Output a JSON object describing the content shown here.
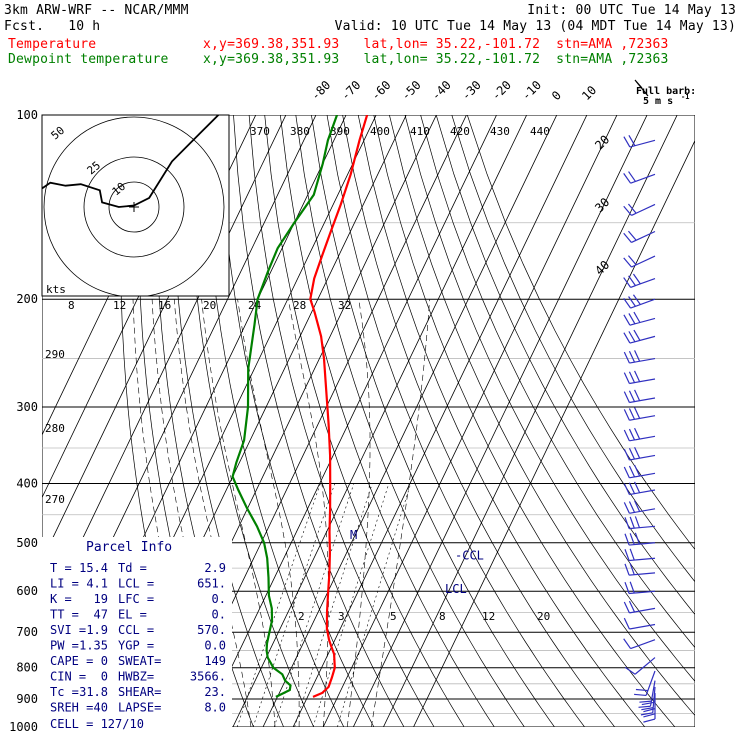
{
  "header": {
    "model": "3km ARW-WRF -- NCAR/MMM",
    "init": "Init: 00 UTC Tue 14 May 13",
    "fcst": "Fcst.   10 h",
    "valid": "Valid: 10 UTC Tue 14 May 13 (04 MDT Tue 14 May 13)",
    "temp_label": "Temperature",
    "temp_info": "x,y=369.38,351.93   lat,lon= 35.22,-101.72  stn=AMA ,72363",
    "dew_label": "Dewpoint temperature",
    "dew_info": "x,y=369.38,351.93   lat,lon= 35.22,-101.72  stn=AMA ,72363",
    "barb_legend_1": "Full barb:",
    "barb_legend_2": "5 m s",
    "barb_legend_3": "-1"
  },
  "colors": {
    "temperature": "#ff0000",
    "dewpoint": "#008000",
    "grid": "#000000",
    "parcel": "#000080",
    "hodograph": "#000000",
    "barbs": "#3030c0"
  },
  "chart_data": {
    "type": "line",
    "title": "3km ARW-WRF -- NCAR/MMM",
    "yscale": "log",
    "yinvert": true,
    "ylim": [
      1000,
      100
    ],
    "pressure_ticks": [
      100,
      200,
      300,
      400,
      500,
      600,
      700,
      800,
      900,
      1000
    ],
    "isotherm_labels": [
      -80,
      -70,
      -60,
      -50,
      -40,
      -30,
      -20,
      -10,
      0,
      10,
      20,
      30,
      40
    ],
    "theta_labels": [
      370,
      380,
      390,
      400,
      410,
      420,
      430,
      440
    ],
    "theta_side_labels": [
      290,
      280,
      270
    ],
    "mixing_ratio_labels_top": [
      8,
      12,
      16,
      20,
      24,
      28,
      32
    ],
    "mixing_ratio_labels_low": [
      2,
      3,
      5,
      8,
      12,
      20
    ],
    "series": [
      {
        "name": "Temperature",
        "points": [
          [
            893,
            11.8
          ],
          [
            880,
            14.2
          ],
          [
            860,
            15.4
          ],
          [
            830,
            15.0
          ],
          [
            800,
            14.4
          ],
          [
            760,
            12.0
          ],
          [
            740,
            10.0
          ],
          [
            720,
            8.0
          ],
          [
            690,
            5.5
          ],
          [
            650,
            3.0
          ],
          [
            600,
            0.0
          ],
          [
            560,
            -2.5
          ],
          [
            520,
            -5.5
          ],
          [
            480,
            -9.0
          ],
          [
            440,
            -12.5
          ],
          [
            400,
            -16.5
          ],
          [
            360,
            -21.0
          ],
          [
            320,
            -26.5
          ],
          [
            280,
            -33.0
          ],
          [
            250,
            -38.5
          ],
          [
            230,
            -43.0
          ],
          [
            210,
            -49.0
          ],
          [
            200,
            -52.5
          ],
          [
            185,
            -54.5
          ],
          [
            170,
            -55.5
          ],
          [
            155,
            -56.5
          ],
          [
            140,
            -57.5
          ],
          [
            125,
            -59.0
          ],
          [
            110,
            -61.5
          ],
          [
            100,
            -63.0
          ]
        ]
      },
      {
        "name": "Dewpoint temperature",
        "points": [
          [
            893,
            -0.5
          ],
          [
            870,
            3.0
          ],
          [
            855,
            2.5
          ],
          [
            840,
            0.0
          ],
          [
            820,
            -2.0
          ],
          [
            800,
            -6.0
          ],
          [
            770,
            -9.5
          ],
          [
            750,
            -11.0
          ],
          [
            730,
            -12.0
          ],
          [
            700,
            -13.0
          ],
          [
            670,
            -14.0
          ],
          [
            640,
            -16.0
          ],
          [
            610,
            -19.0
          ],
          [
            570,
            -22.0
          ],
          [
            530,
            -25.5
          ],
          [
            500,
            -29.0
          ],
          [
            470,
            -34.0
          ],
          [
            440,
            -40.0
          ],
          [
            410,
            -46.0
          ],
          [
            390,
            -50.0
          ],
          [
            370,
            -51.0
          ],
          [
            340,
            -52.0
          ],
          [
            300,
            -56.0
          ],
          [
            260,
            -62.0
          ],
          [
            220,
            -67.0
          ],
          [
            200,
            -70.0
          ],
          [
            180,
            -71.0
          ],
          [
            165,
            -71.5
          ],
          [
            150,
            -70.0
          ],
          [
            135,
            -68.0
          ],
          [
            120,
            -70.0
          ],
          [
            110,
            -72.0
          ],
          [
            100,
            -73.0
          ]
        ]
      }
    ],
    "markers": [
      {
        "label": "LCL",
        "pressure": 651
      },
      {
        "label": "-CCL",
        "pressure": 570
      },
      {
        "label": "M",
        "pressure": 500
      }
    ],
    "parcel_info": {
      "title": "Parcel Info",
      "rows": [
        [
          "T  =",
          "15.4",
          "Td  =",
          "2.9"
        ],
        [
          "LI =",
          "4.1",
          "LCL =",
          "651."
        ],
        [
          "K  =",
          "19",
          "LFC =",
          "0."
        ],
        [
          "TT =",
          "47",
          "EL  =",
          "0."
        ],
        [
          "SVI =",
          "1.9",
          "CCL =",
          "570."
        ],
        [
          "PW =",
          "1.35",
          "YGP =",
          "0.0"
        ],
        [
          "CAPE =",
          "0",
          "SWEAT=",
          "149"
        ],
        [
          "CIN =",
          "0",
          "HWBZ=",
          "3566."
        ],
        [
          "Tc =",
          "31.8",
          "SHEAR=",
          "23."
        ],
        [
          "SREH =",
          "40",
          "LAPSE=",
          "8.0"
        ]
      ],
      "cell": "CELL = 127/10"
    },
    "hodograph": {
      "ring_labels": [
        "50",
        "25",
        "10"
      ],
      "units": "kts",
      "points": [
        [
          -13,
          3.5
        ],
        [
          -12,
          2.5
        ],
        [
          -11,
          3.2
        ],
        [
          -9,
          2.8
        ],
        [
          -7,
          3.0
        ],
        [
          -4.5,
          2.2
        ],
        [
          -4.2,
          0.6
        ],
        [
          -2,
          0
        ],
        [
          0,
          0.2
        ],
        [
          2,
          1.2
        ],
        [
          5,
          6
        ],
        [
          9,
          10
        ],
        [
          13,
          14
        ]
      ]
    },
    "wind_barbs": [
      {
        "p": 110,
        "speed_ms": 10,
        "dir": 255
      },
      {
        "p": 125,
        "speed_ms": 10,
        "dir": 250
      },
      {
        "p": 140,
        "speed_ms": 10,
        "dir": 245
      },
      {
        "p": 155,
        "speed_ms": 10,
        "dir": 245
      },
      {
        "p": 170,
        "speed_ms": 10,
        "dir": 245
      },
      {
        "p": 185,
        "speed_ms": 15,
        "dir": 250
      },
      {
        "p": 200,
        "speed_ms": 15,
        "dir": 250
      },
      {
        "p": 215,
        "speed_ms": 15,
        "dir": 255
      },
      {
        "p": 230,
        "speed_ms": 15,
        "dir": 255
      },
      {
        "p": 250,
        "speed_ms": 15,
        "dir": 260
      },
      {
        "p": 270,
        "speed_ms": 15,
        "dir": 260
      },
      {
        "p": 290,
        "speed_ms": 15,
        "dir": 260
      },
      {
        "p": 310,
        "speed_ms": 15,
        "dir": 260
      },
      {
        "p": 335,
        "speed_ms": 15,
        "dir": 260
      },
      {
        "p": 360,
        "speed_ms": 15,
        "dir": 260
      },
      {
        "p": 385,
        "speed_ms": 15,
        "dir": 260
      },
      {
        "p": 410,
        "speed_ms": 15,
        "dir": 260
      },
      {
        "p": 440,
        "speed_ms": 15,
        "dir": 260
      },
      {
        "p": 470,
        "speed_ms": 15,
        "dir": 265
      },
      {
        "p": 500,
        "speed_ms": 15,
        "dir": 265
      },
      {
        "p": 530,
        "speed_ms": 10,
        "dir": 265
      },
      {
        "p": 560,
        "speed_ms": 10,
        "dir": 265
      },
      {
        "p": 600,
        "speed_ms": 10,
        "dir": 265
      },
      {
        "p": 640,
        "speed_ms": 10,
        "dir": 260
      },
      {
        "p": 680,
        "speed_ms": 5,
        "dir": 260
      },
      {
        "p": 720,
        "speed_ms": 5,
        "dir": 250
      },
      {
        "p": 770,
        "speed_ms": 5,
        "dir": 230
      },
      {
        "p": 810,
        "speed_ms": 10,
        "dir": 200
      },
      {
        "p": 840,
        "speed_ms": 10,
        "dir": 190
      },
      {
        "p": 860,
        "speed_ms": 15,
        "dir": 185
      },
      {
        "p": 880,
        "speed_ms": 15,
        "dir": 180
      }
    ]
  }
}
